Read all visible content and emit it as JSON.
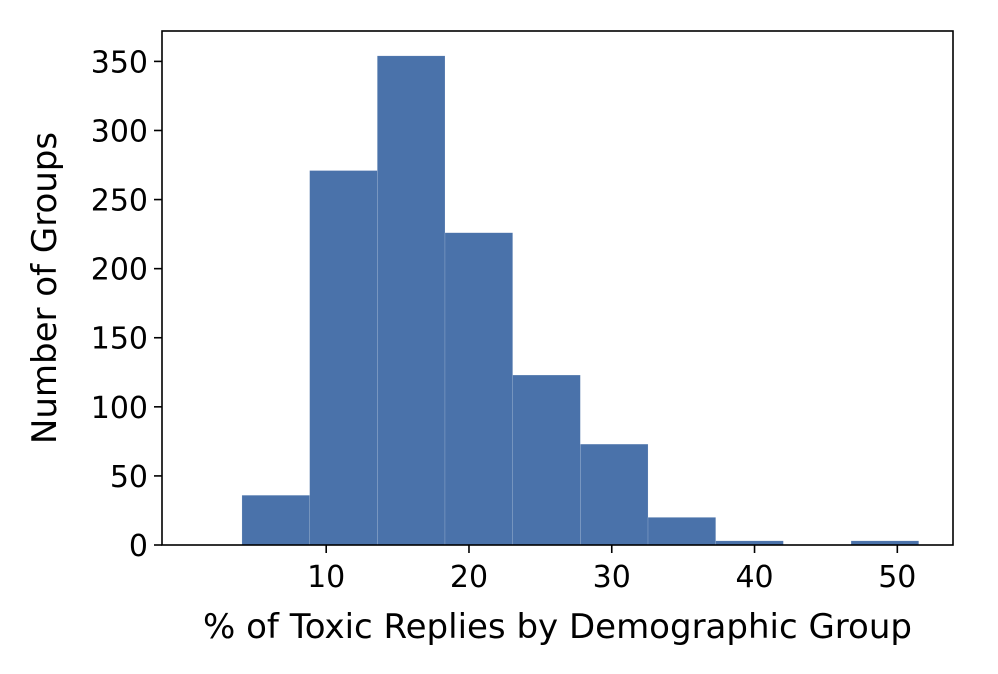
{
  "chart_data": {
    "type": "bar",
    "subtype": "histogram",
    "title": "",
    "xlabel": "% of Toxic Replies by Demographic Group",
    "ylabel": "Number of Groups",
    "bin_edges": [
      4.1,
      8.84,
      13.58,
      18.32,
      23.06,
      27.8,
      32.54,
      37.28,
      42.02,
      46.76,
      51.5
    ],
    "counts": [
      36,
      271,
      354,
      226,
      123,
      73,
      20,
      3,
      0,
      3
    ],
    "xlim": [
      -1.5,
      53.9
    ],
    "ylim": [
      0,
      372
    ],
    "xticks": [
      10,
      20,
      30,
      40,
      50
    ],
    "yticks": [
      0,
      50,
      100,
      150,
      200,
      250,
      300,
      350
    ],
    "bar_color": "#4a72aa",
    "grid": false
  }
}
